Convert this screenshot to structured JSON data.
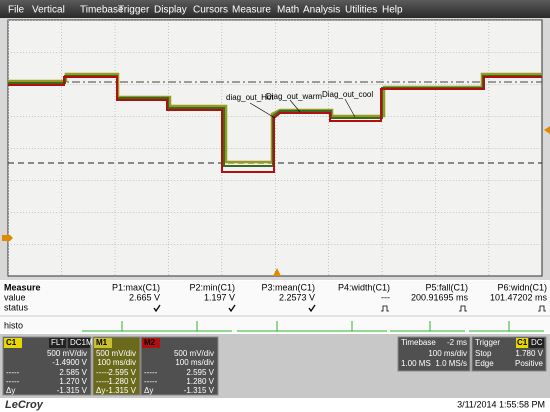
{
  "menu": [
    "File",
    "Vertical",
    "Timebase",
    "Trigger",
    "Display",
    "Cursors",
    "Measure",
    "Math",
    "Analysis",
    "Utilities",
    "Help"
  ],
  "trace_labels": [
    "diag_out_Hot",
    "Diag_out_warm",
    "Diag_out_cool"
  ],
  "measure": {
    "title": "Measure",
    "value_label": "value",
    "status_label": "status",
    "histo_label": "histo",
    "params": [
      {
        "name": "P1:max(C1)",
        "value": "2.665 V"
      },
      {
        "name": "P2:min(C1)",
        "value": "1.197 V"
      },
      {
        "name": "P3:mean(C1)",
        "value": "2.2573 V"
      },
      {
        "name": "P4:width(C1)",
        "value": "---"
      },
      {
        "name": "P5:fall(C1)",
        "value": "200.91695 ms"
      },
      {
        "name": "P6:widn(C1)",
        "value": "101.47202 ms"
      }
    ]
  },
  "channels": [
    {
      "tag": "C1",
      "badges": [
        "FLT",
        "DC1M"
      ],
      "scale": "500 mV/div",
      "second": "-1.4900 V",
      "rows": [
        [
          "-----",
          "2.585 V"
        ],
        [
          "-----",
          "1.270 V"
        ],
        [
          "Δy",
          "-1.315 V"
        ]
      ]
    },
    {
      "tag": "M1",
      "scale": "500 mV/div",
      "second": "100 ms/div",
      "rows": [
        [
          "-----",
          "2.595 V"
        ],
        [
          "-----",
          "1.280 V"
        ],
        [
          "Δy",
          "-1.315 V"
        ]
      ]
    },
    {
      "tag": "M2",
      "scale": "500 mV/div",
      "second": "100 ms/div",
      "rows": [
        [
          "-----",
          "2.595 V"
        ],
        [
          "-----",
          "1.280 V"
        ],
        [
          "Δy",
          "-1.315 V"
        ]
      ]
    }
  ],
  "timebase": {
    "title": "Timebase",
    "delay": "-2 ms",
    "div": "100 ms/div",
    "samples": "1.00 MS",
    "rate": "1.0 MS/s"
  },
  "trigger": {
    "title": "Trigger",
    "badges": [
      "C1",
      "DC"
    ],
    "mode": "Stop",
    "level": "1.780 V",
    "type": "Edge",
    "slope": "Positive"
  },
  "footer": {
    "brand": "LeCroy",
    "timestamp": "3/11/2014 1:55:58 PM"
  }
}
